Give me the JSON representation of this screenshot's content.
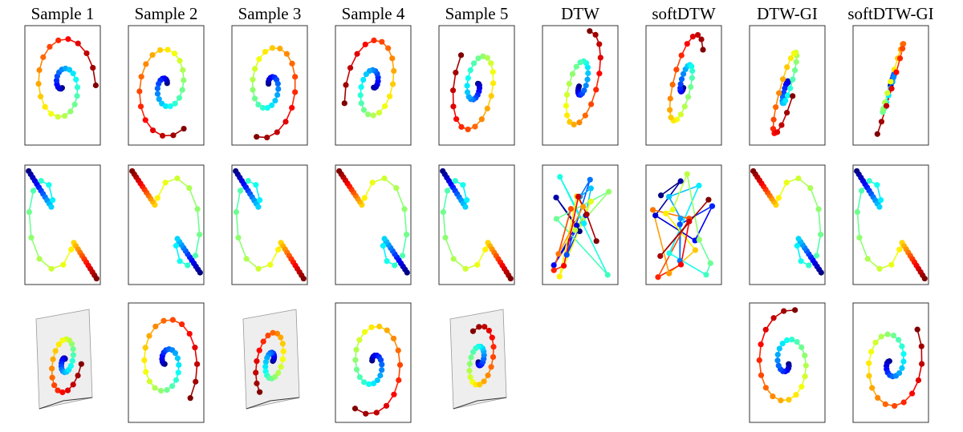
{
  "columns": [
    "Sample 1",
    "Sample 2",
    "Sample 3",
    "Sample 4",
    "Sample 5",
    "DTW",
    "softDTW",
    "DTW-GI",
    "softDTW-GI"
  ]
}
